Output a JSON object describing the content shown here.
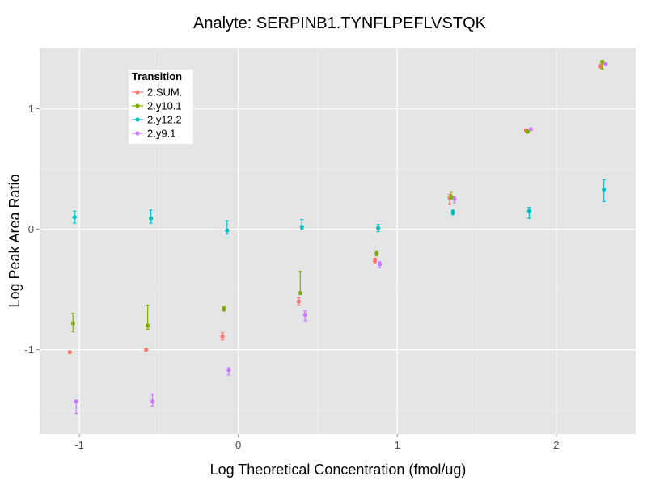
{
  "chart_data": {
    "type": "scatter",
    "title": "Analyte: SERPINB1.TYNFLPEFLVSTQK",
    "xlabel": "Log Theoretical Concentration (fmol/ug)",
    "ylabel": "Log Peak Area Ratio",
    "xlim": [
      -1.25,
      2.5
    ],
    "ylim": [
      -1.7,
      1.5
    ],
    "xticks": [
      -1,
      0,
      1,
      2
    ],
    "xtick_labels": [
      "-1",
      "0",
      "1",
      "2"
    ],
    "yticks": [
      -1,
      0,
      1
    ],
    "ytick_labels": [
      "-1",
      "0",
      "1"
    ],
    "grid": true,
    "legend": {
      "title": "Transition",
      "placement": "top-left"
    },
    "series": [
      {
        "name": "2.SUM.",
        "color": "#F8766D",
        "points": [
          {
            "x": -1.06,
            "y": -1.02,
            "lo": -1.02,
            "hi": -1.02
          },
          {
            "x": -0.58,
            "y": -1.0,
            "lo": -1.0,
            "hi": -1.0
          },
          {
            "x": -0.1,
            "y": -0.89,
            "lo": -0.92,
            "hi": -0.86
          },
          {
            "x": 0.38,
            "y": -0.6,
            "lo": -0.63,
            "hi": -0.57
          },
          {
            "x": 0.86,
            "y": -0.26,
            "lo": -0.28,
            "hi": -0.24
          },
          {
            "x": 1.33,
            "y": 0.26,
            "lo": 0.21,
            "hi": 0.29
          },
          {
            "x": 1.81,
            "y": 0.82,
            "lo": 0.81,
            "hi": 0.82
          },
          {
            "x": 2.28,
            "y": 1.35,
            "lo": 1.34,
            "hi": 1.37
          }
        ]
      },
      {
        "name": "2.y10.1",
        "color": "#7CAE00",
        "points": [
          {
            "x": -1.04,
            "y": -0.78,
            "lo": -0.85,
            "hi": -0.7
          },
          {
            "x": -0.57,
            "y": -0.8,
            "lo": -0.83,
            "hi": -0.63
          },
          {
            "x": -0.09,
            "y": -0.66,
            "lo": -0.68,
            "hi": -0.64
          },
          {
            "x": 0.39,
            "y": -0.53,
            "lo": -0.54,
            "hi": -0.35
          },
          {
            "x": 0.87,
            "y": -0.2,
            "lo": -0.22,
            "hi": -0.18
          },
          {
            "x": 1.34,
            "y": 0.27,
            "lo": 0.25,
            "hi": 0.31
          },
          {
            "x": 1.82,
            "y": 0.81,
            "lo": 0.8,
            "hi": 0.82
          },
          {
            "x": 2.29,
            "y": 1.39,
            "lo": 1.33,
            "hi": 1.4
          }
        ]
      },
      {
        "name": "2.y12.2",
        "color": "#00BFC4",
        "points": [
          {
            "x": -1.03,
            "y": 0.1,
            "lo": 0.05,
            "hi": 0.15
          },
          {
            "x": -0.55,
            "y": 0.09,
            "lo": 0.05,
            "hi": 0.16
          },
          {
            "x": -0.07,
            "y": -0.01,
            "lo": -0.04,
            "hi": 0.07
          },
          {
            "x": 0.4,
            "y": 0.02,
            "lo": 0.0,
            "hi": 0.08
          },
          {
            "x": 0.88,
            "y": 0.01,
            "lo": -0.02,
            "hi": 0.04
          },
          {
            "x": 1.35,
            "y": 0.14,
            "lo": 0.12,
            "hi": 0.16
          },
          {
            "x": 1.83,
            "y": 0.15,
            "lo": 0.09,
            "hi": 0.18
          },
          {
            "x": 2.3,
            "y": 0.33,
            "lo": 0.23,
            "hi": 0.41
          }
        ]
      },
      {
        "name": "2.y9.1",
        "color": "#C77CFF",
        "points": [
          {
            "x": -1.02,
            "y": -1.43,
            "lo": -1.53,
            "hi": -1.43
          },
          {
            "x": -0.54,
            "y": -1.43,
            "lo": -1.47,
            "hi": -1.37
          },
          {
            "x": -0.06,
            "y": -1.17,
            "lo": -1.21,
            "hi": -1.15
          },
          {
            "x": 0.42,
            "y": -0.71,
            "lo": -0.76,
            "hi": -0.68
          },
          {
            "x": 0.89,
            "y": -0.29,
            "lo": -0.32,
            "hi": -0.27
          },
          {
            "x": 1.36,
            "y": 0.25,
            "lo": 0.22,
            "hi": 0.27
          },
          {
            "x": 1.84,
            "y": 0.83,
            "lo": 0.82,
            "hi": 0.83
          },
          {
            "x": 2.31,
            "y": 1.37,
            "lo": 1.36,
            "hi": 1.38
          }
        ]
      }
    ]
  }
}
